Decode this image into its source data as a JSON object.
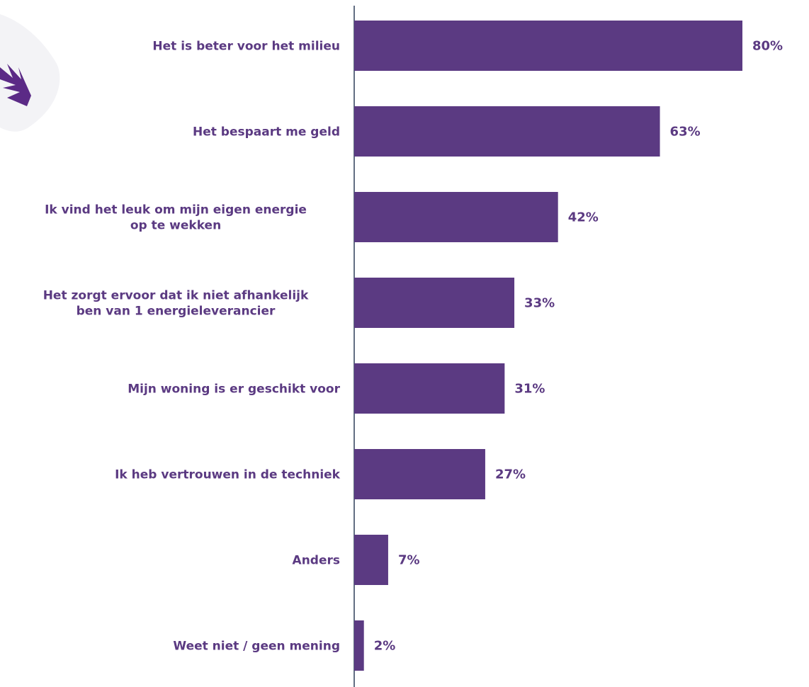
{
  "colors": {
    "bar": "#5b3a82",
    "text": "#5b3a82",
    "axis": "#2e3f5a",
    "decoration": "#5b2a86"
  },
  "chart_data": {
    "type": "bar",
    "orientation": "horizontal",
    "categories": [
      [
        "Het is beter voor het milieu"
      ],
      [
        "Het bespaart me geld"
      ],
      [
        "Ik vind het leuk om mijn eigen energie",
        "op te wekken"
      ],
      [
        "Het zorgt ervoor dat ik niet afhankelijk",
        "ben van 1 energieleverancier"
      ],
      [
        "Mijn woning is er geschikt voor"
      ],
      [
        "Ik heb vertrouwen in de techniek"
      ],
      [
        "Anders"
      ],
      [
        "Weet niet / geen mening"
      ]
    ],
    "values": [
      80,
      63,
      42,
      33,
      31,
      27,
      7,
      2
    ],
    "value_labels": [
      "80%",
      "63%",
      "42%",
      "33%",
      "31%",
      "27%",
      "7%",
      "2%"
    ],
    "xlim": [
      0,
      80
    ],
    "grid": false,
    "legend": "none"
  }
}
